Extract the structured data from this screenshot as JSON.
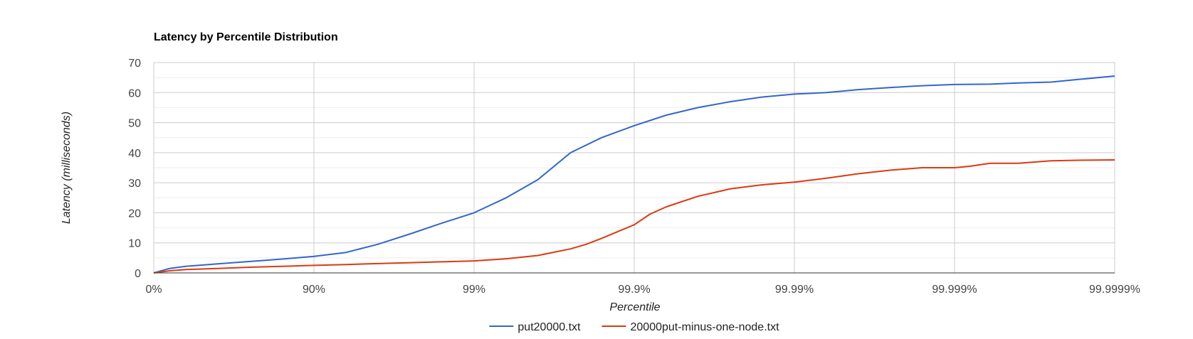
{
  "chart_data": {
    "type": "line",
    "title": "Latency by Percentile Distribution",
    "xlabel": "Percentile",
    "ylabel": "Latency (milliseconds)",
    "x_scale": "log-percentile (1/(1-p))",
    "x_tick_labels": [
      "0%",
      "90%",
      "99%",
      "99.9%",
      "99.99%",
      "99.999%",
      "99.9999%"
    ],
    "y_ticks": [
      0,
      10,
      20,
      30,
      40,
      50,
      60,
      70
    ],
    "ylim": [
      0,
      70
    ],
    "grid": true,
    "legend_position": "bottom",
    "series": [
      {
        "name": "put20000.txt",
        "color": "#3366cc",
        "x": [
          "0%",
          "20.6%",
          "36.9%",
          "60.2%",
          "74.9%",
          "84.2%",
          "90%",
          "93.7%",
          "96.0%",
          "97.5%",
          "98.4%",
          "99%",
          "99.37%",
          "99.60%",
          "99.75%",
          "99.84%",
          "99.9%",
          "99.937%",
          "99.960%",
          "99.975%",
          "99.984%",
          "99.99%",
          "99.9937%",
          "99.9960%",
          "99.9975%",
          "99.9984%",
          "99.999%",
          "99.9994%",
          "99.99960%",
          "99.99975%",
          "99.99984%",
          "99.9999%"
        ],
        "y": [
          0,
          1.5,
          2.2,
          3.0,
          3.8,
          4.6,
          5.5,
          6.8,
          9.5,
          13.0,
          16.5,
          20.0,
          25.0,
          31.0,
          40.0,
          45.0,
          49.0,
          52.5,
          55.0,
          57.0,
          58.5,
          59.5,
          60.0,
          61.0,
          61.7,
          62.3,
          62.7,
          62.8,
          63.2,
          63.5,
          64.5,
          65.5
        ]
      },
      {
        "name": "20000put-minus-one-node.txt",
        "color": "#dc3912",
        "x": [
          "0%",
          "20.6%",
          "36.9%",
          "60.2%",
          "74.9%",
          "84.2%",
          "90%",
          "93.7%",
          "96.0%",
          "97.5%",
          "98.4%",
          "99%",
          "99.37%",
          "99.60%",
          "99.75%",
          "99.80%",
          "99.84%",
          "99.87%",
          "99.9%",
          "99.92%",
          "99.937%",
          "99.960%",
          "99.975%",
          "99.984%",
          "99.99%",
          "99.9937%",
          "99.9960%",
          "99.9975%",
          "99.9984%",
          "99.999%",
          "99.9992%",
          "99.9994%",
          "99.99960%",
          "99.99975%",
          "99.99984%",
          "99.9999%"
        ],
        "y": [
          0,
          0.7,
          1.1,
          1.5,
          1.9,
          2.2,
          2.5,
          2.8,
          3.1,
          3.4,
          3.7,
          4.0,
          4.7,
          5.8,
          8.0,
          9.5,
          11.5,
          13.5,
          16.0,
          19.5,
          22.0,
          25.5,
          28.0,
          29.3,
          30.2,
          31.5,
          33.0,
          34.2,
          35.0,
          35.0,
          35.5,
          36.5,
          36.5,
          37.3,
          37.5,
          37.6
        ]
      }
    ]
  }
}
